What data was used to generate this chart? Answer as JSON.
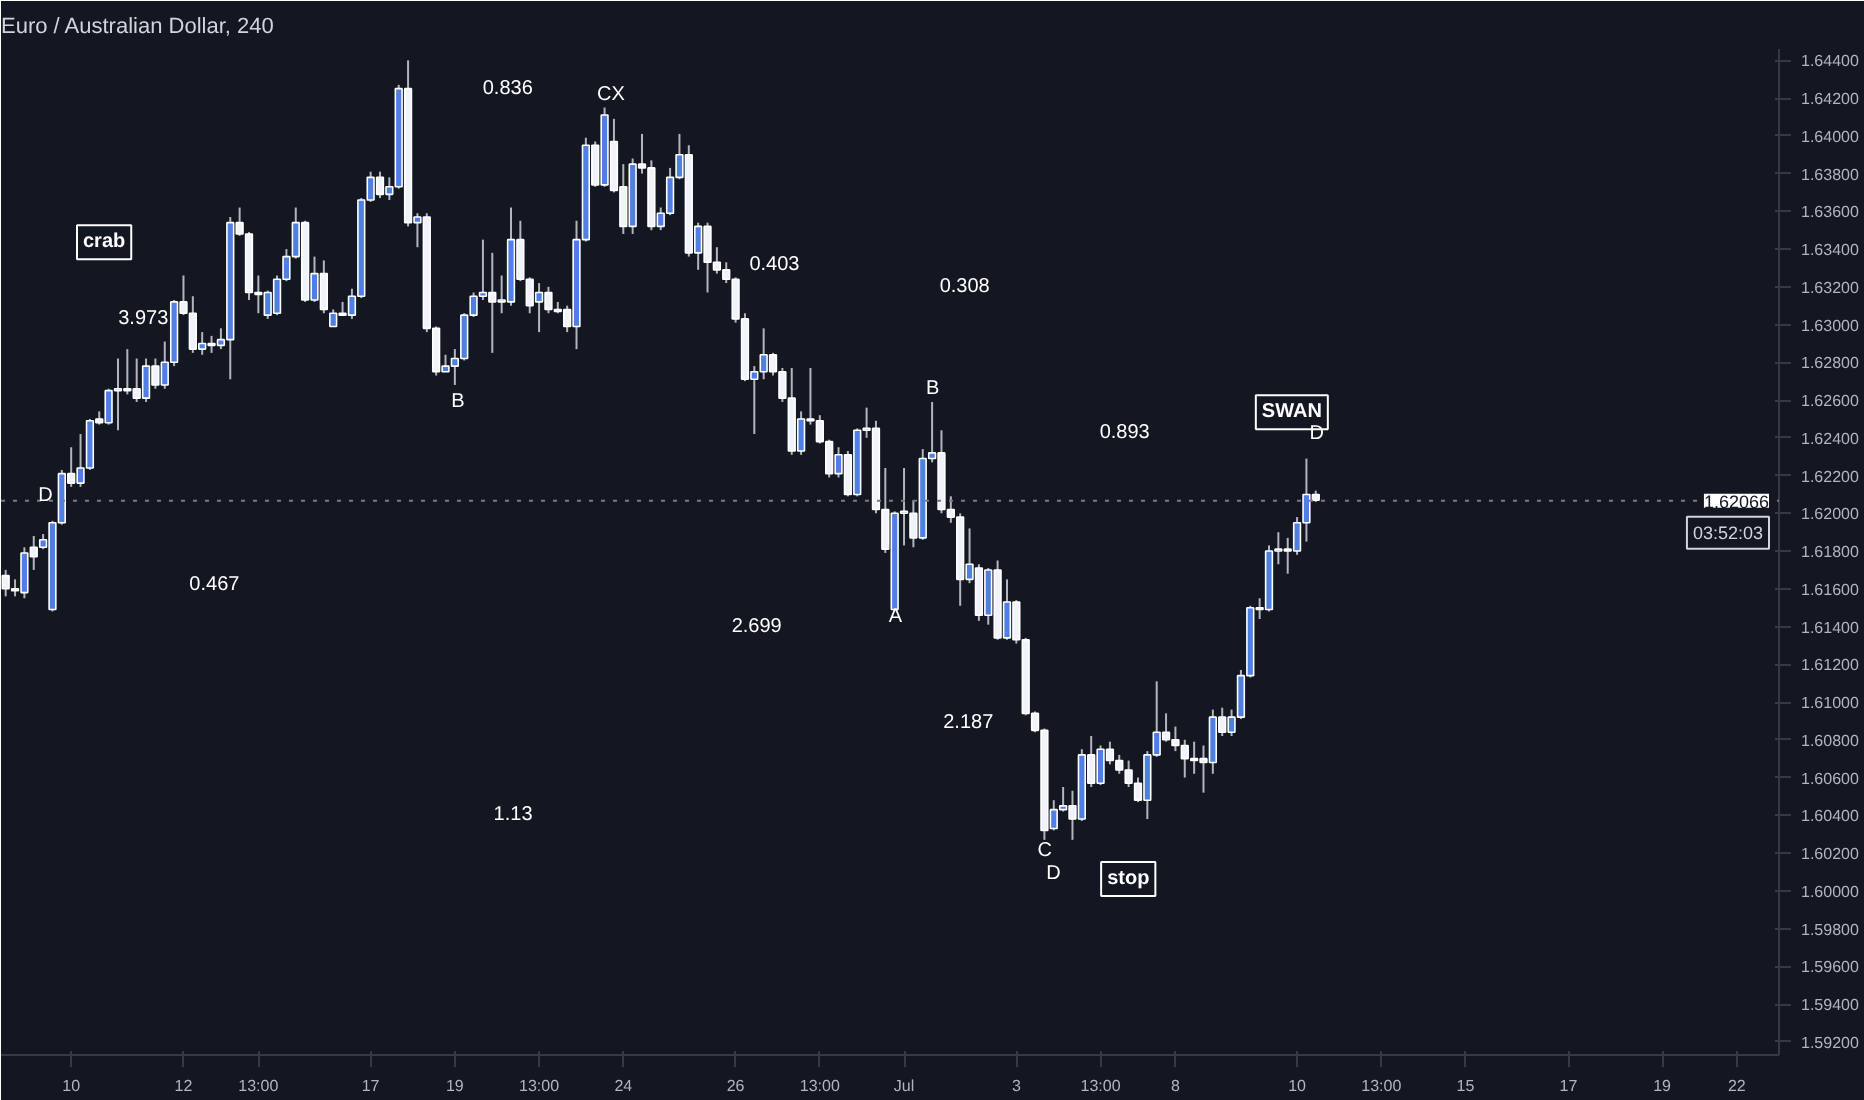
{
  "chart_data": {
    "type": "candlestick",
    "title": "Euro / Australian Dollar, 240",
    "categories": [
      null,
      null,
      null,
      null,
      null,
      null,
      null,
      "10",
      null,
      null,
      null,
      null,
      null,
      null,
      null,
      null,
      null,
      null,
      null,
      "12",
      null,
      null,
      null,
      null,
      null,
      null,
      null,
      "13:00",
      null,
      null,
      null,
      null,
      null,
      null,
      null,
      null,
      null,
      null,
      null,
      "17",
      null,
      null,
      null,
      null,
      null,
      null,
      null,
      null,
      "19",
      null,
      null,
      null,
      null,
      null,
      null,
      null,
      null,
      "13:00",
      null,
      null,
      null,
      null,
      null,
      null,
      null,
      null,
      "24",
      null,
      null,
      null,
      null,
      null,
      null,
      null,
      null,
      null,
      null,
      null,
      "26",
      null,
      null,
      null,
      null,
      null,
      null,
      null,
      null,
      "13:00",
      null,
      null,
      null,
      null,
      null,
      null,
      null,
      null,
      "Jul",
      null,
      null,
      null,
      null,
      null,
      null,
      null,
      null,
      null,
      null,
      null,
      "3",
      null,
      null,
      null,
      null,
      null,
      null,
      null,
      null,
      "13:00",
      null,
      null,
      null,
      null,
      null,
      null,
      null,
      "8",
      null,
      null,
      null,
      null,
      null,
      null,
      null,
      null,
      null,
      null,
      null,
      null,
      "10",
      null,
      null,
      null,
      null,
      null,
      null,
      null,
      null,
      "13:00",
      null,
      null,
      null,
      null,
      null,
      null,
      null,
      null,
      "15",
      null,
      null,
      null,
      null,
      null,
      null,
      null,
      null,
      null,
      null,
      "17",
      null,
      null,
      null,
      null,
      null,
      null,
      null,
      null,
      null,
      "19",
      null,
      null,
      null,
      null,
      null,
      null,
      null,
      "22",
      null,
      null,
      null,
      null
    ],
    "ohlc": [
      [
        1.6167,
        1.617,
        1.6156,
        1.616
      ],
      [
        1.616,
        1.6165,
        1.6156,
        1.6159
      ],
      [
        1.6158,
        1.6182,
        1.6155,
        1.6179
      ],
      [
        1.6182,
        1.6188,
        1.617,
        1.6177
      ],
      [
        1.6182,
        1.6189,
        1.6181,
        1.6186
      ],
      [
        1.6149,
        1.6196,
        1.6148,
        1.6195
      ],
      [
        1.6195,
        1.6223,
        1.6194,
        1.6221
      ],
      [
        1.6221,
        1.6235,
        1.6214,
        1.6216
      ],
      [
        1.6216,
        1.6242,
        1.6214,
        1.6224
      ],
      [
        1.6224,
        1.625,
        1.6223,
        1.6249
      ],
      [
        1.625,
        1.6254,
        1.6247,
        1.6248
      ],
      [
        1.6248,
        1.6266,
        1.6247,
        1.6265
      ],
      [
        1.6265,
        1.6282,
        1.6244,
        1.6266
      ],
      [
        1.6266,
        1.6287,
        1.6263,
        1.6265
      ],
      [
        1.6266,
        1.6282,
        1.6259,
        1.6261
      ],
      [
        1.6261,
        1.6282,
        1.6259,
        1.6278
      ],
      [
        1.6278,
        1.6282,
        1.6266,
        1.6268
      ],
      [
        1.6268,
        1.6291,
        1.6266,
        1.628
      ],
      [
        1.628,
        1.6313,
        1.6278,
        1.6312
      ],
      [
        1.6312,
        1.6326,
        1.6305,
        1.6306
      ],
      [
        1.6306,
        1.6315,
        1.6285,
        1.6287
      ],
      [
        1.6287,
        1.6296,
        1.6284,
        1.629
      ],
      [
        1.629,
        1.6294,
        1.6285,
        1.6289
      ],
      [
        1.6289,
        1.6298,
        1.6287,
        1.6292
      ],
      [
        1.6292,
        1.6357,
        1.6271,
        1.6354
      ],
      [
        1.6354,
        1.6362,
        1.6347,
        1.6348
      ],
      [
        1.6348,
        1.6349,
        1.6313,
        1.6317
      ],
      [
        1.6317,
        1.6326,
        1.6306,
        1.6316
      ],
      [
        1.6305,
        1.6318,
        1.6303,
        1.6317
      ],
      [
        1.6306,
        1.6326,
        1.6305,
        1.6324
      ],
      [
        1.6324,
        1.634,
        1.6323,
        1.6336
      ],
      [
        1.6336,
        1.6362,
        1.6335,
        1.6354
      ],
      [
        1.6354,
        1.6355,
        1.6312,
        1.6313
      ],
      [
        1.6313,
        1.6336,
        1.6312,
        1.6327
      ],
      [
        1.6327,
        1.6334,
        1.6306,
        1.6308
      ],
      [
        1.6299,
        1.6308,
        1.6299,
        1.6306
      ],
      [
        1.6306,
        1.6312,
        1.6305,
        1.6305
      ],
      [
        1.6305,
        1.6319,
        1.6303,
        1.6315
      ],
      [
        1.6315,
        1.6367,
        1.6314,
        1.6366
      ],
      [
        1.6366,
        1.6381,
        1.6365,
        1.6378
      ],
      [
        1.6378,
        1.6381,
        1.6367,
        1.6369
      ],
      [
        1.6369,
        1.6378,
        1.6366,
        1.6373
      ],
      [
        1.6373,
        1.6427,
        1.6372,
        1.6425
      ],
      [
        1.6425,
        1.644,
        1.6352,
        1.6354
      ],
      [
        1.6354,
        1.6359,
        1.6341,
        1.6357
      ],
      [
        1.6357,
        1.6359,
        1.6296,
        1.6298
      ],
      [
        1.6298,
        1.6299,
        1.6273,
        1.6275
      ],
      [
        1.6275,
        1.6284,
        1.6275,
        1.6278
      ],
      [
        1.6278,
        1.6287,
        1.6268,
        1.6282
      ],
      [
        1.6282,
        1.6306,
        1.6281,
        1.6305
      ],
      [
        1.6305,
        1.6317,
        1.6304,
        1.6315
      ],
      [
        1.6315,
        1.6345,
        1.6313,
        1.6317
      ],
      [
        1.6317,
        1.6338,
        1.6285,
        1.6312
      ],
      [
        1.6312,
        1.6326,
        1.6306,
        1.6313
      ],
      [
        1.6312,
        1.6362,
        1.631,
        1.6345
      ],
      [
        1.6345,
        1.6355,
        1.6323,
        1.6324
      ],
      [
        1.6324,
        1.6325,
        1.6306,
        1.631
      ],
      [
        1.6312,
        1.6322,
        1.6296,
        1.6317
      ],
      [
        1.6317,
        1.632,
        1.6306,
        1.6308
      ],
      [
        1.6308,
        1.6312,
        1.6306,
        1.6307
      ],
      [
        1.6308,
        1.631,
        1.6296,
        1.6299
      ],
      [
        1.6299,
        1.6355,
        1.6287,
        1.6345
      ],
      [
        1.6345,
        1.6399,
        1.6344,
        1.6395
      ],
      [
        1.6395,
        1.6397,
        1.6373,
        1.6374
      ],
      [
        1.6374,
        1.6415,
        1.6373,
        1.6411
      ],
      [
        1.6397,
        1.6409,
        1.637,
        1.6371
      ],
      [
        1.6373,
        1.6385,
        1.6348,
        1.6352
      ],
      [
        1.6352,
        1.6388,
        1.6348,
        1.6385
      ],
      [
        1.6385,
        1.6401,
        1.638,
        1.6383
      ],
      [
        1.6383,
        1.6387,
        1.635,
        1.6352
      ],
      [
        1.6352,
        1.6362,
        1.635,
        1.6359
      ],
      [
        1.6359,
        1.6383,
        1.6358,
        1.6378
      ],
      [
        1.6378,
        1.6401,
        1.6377,
        1.639
      ],
      [
        1.639,
        1.6395,
        1.6336,
        1.6338
      ],
      [
        1.6338,
        1.6354,
        1.6329,
        1.6352
      ],
      [
        1.6352,
        1.6354,
        1.6317,
        1.6333
      ],
      [
        1.6333,
        1.6341,
        1.6327,
        1.6329
      ],
      [
        1.6329,
        1.6333,
        1.6322,
        1.6324
      ],
      [
        1.6324,
        1.6325,
        1.6301,
        1.6303
      ],
      [
        1.6303,
        1.6306,
        1.627,
        1.6271
      ],
      [
        1.6271,
        1.6278,
        1.6242,
        1.6275
      ],
      [
        1.6275,
        1.6298,
        1.6271,
        1.6284
      ],
      [
        1.6284,
        1.6285,
        1.6273,
        1.6275
      ],
      [
        1.6275,
        1.6277,
        1.6259,
        1.6261
      ],
      [
        1.6261,
        1.6277,
        1.6231,
        1.6233
      ],
      [
        1.6233,
        1.6254,
        1.6231,
        1.625
      ],
      [
        1.625,
        1.6277,
        1.6247,
        1.6249
      ],
      [
        1.6249,
        1.6252,
        1.6237,
        1.6238
      ],
      [
        1.6238,
        1.6239,
        1.6219,
        1.6221
      ],
      [
        1.6221,
        1.6235,
        1.6219,
        1.6231
      ],
      [
        1.6231,
        1.6233,
        1.6209,
        1.621
      ],
      [
        1.621,
        1.6245,
        1.6209,
        1.6244
      ],
      [
        1.6244,
        1.6256,
        1.624,
        1.6245
      ],
      [
        1.6245,
        1.6249,
        1.62,
        1.6202
      ],
      [
        1.6202,
        1.6224,
        1.6179,
        1.6181
      ],
      [
        1.6149,
        1.6201,
        1.6148,
        1.62
      ],
      [
        1.62,
        1.6224,
        1.6183,
        1.6201
      ],
      [
        1.62,
        1.6207,
        1.6182,
        1.6187
      ],
      [
        1.6187,
        1.6234,
        1.6186,
        1.6229
      ],
      [
        1.6229,
        1.6259,
        1.6227,
        1.6232
      ],
      [
        1.6232,
        1.6244,
        1.62,
        1.6202
      ],
      [
        1.6202,
        1.6209,
        1.6195,
        1.6198
      ],
      [
        1.6198,
        1.62,
        1.6151,
        1.6165
      ],
      [
        1.6165,
        1.6192,
        1.6163,
        1.6173
      ],
      [
        1.6171,
        1.6173,
        1.6143,
        1.6146
      ],
      [
        1.6146,
        1.6171,
        1.6141,
        1.617
      ],
      [
        1.617,
        1.6175,
        1.6133,
        1.6134
      ],
      [
        1.6134,
        1.6165,
        1.6133,
        1.6153
      ],
      [
        1.6153,
        1.6154,
        1.6131,
        1.6133
      ],
      [
        1.6133,
        1.6134,
        1.6093,
        1.6094
      ],
      [
        1.6094,
        1.6095,
        1.6084,
        1.6085
      ],
      [
        1.6085,
        1.6086,
        1.6027,
        1.6032
      ],
      [
        1.6033,
        1.6048,
        1.6032,
        1.6043
      ],
      [
        1.6043,
        1.6055,
        1.6042,
        1.6045
      ],
      [
        1.6045,
        1.6053,
        1.6027,
        1.6038
      ],
      [
        1.6038,
        1.6075,
        1.6037,
        1.6072
      ],
      [
        1.6072,
        1.6082,
        1.6055,
        1.6057
      ],
      [
        1.6057,
        1.6077,
        1.6056,
        1.6075
      ],
      [
        1.6075,
        1.6079,
        1.6067,
        1.6069
      ],
      [
        1.6069,
        1.6072,
        1.6062,
        1.6064
      ],
      [
        1.6064,
        1.6069,
        1.6055,
        1.6057
      ],
      [
        1.6057,
        1.606,
        1.6047,
        1.6048
      ],
      [
        1.6048,
        1.6074,
        1.6038,
        1.6072
      ],
      [
        1.6072,
        1.6111,
        1.6071,
        1.6084
      ],
      [
        1.6084,
        1.6094,
        1.6079,
        1.608
      ],
      [
        1.608,
        1.6087,
        1.6074,
        1.6077
      ],
      [
        1.6077,
        1.608,
        1.606,
        1.607
      ],
      [
        1.607,
        1.6079,
        1.6062,
        1.6069
      ],
      [
        1.607,
        1.6077,
        1.6052,
        1.6068
      ],
      [
        1.6068,
        1.6096,
        1.6062,
        1.6092
      ],
      [
        1.6092,
        1.6097,
        1.6082,
        1.6084
      ],
      [
        1.6084,
        1.6096,
        1.6082,
        1.6092
      ],
      [
        1.6092,
        1.6117,
        1.6091,
        1.6114
      ],
      [
        1.6114,
        1.6151,
        1.6113,
        1.615
      ],
      [
        1.615,
        1.6155,
        1.6144,
        1.6149
      ],
      [
        1.6149,
        1.6183,
        1.6148,
        1.618
      ],
      [
        1.618,
        1.619,
        1.6173,
        1.6181
      ],
      [
        1.6181,
        1.6187,
        1.6168,
        1.618
      ],
      [
        1.618,
        1.6198,
        1.6178,
        1.6195
      ],
      [
        1.6195,
        1.6229,
        1.6185,
        1.621
      ],
      [
        1.621,
        1.6212,
        1.6206,
        1.6207
      ],
      null,
      null,
      null,
      null,
      null,
      null,
      null,
      null,
      null,
      null,
      null,
      null,
      null,
      null,
      null,
      null,
      null,
      null,
      null,
      null,
      null,
      null,
      null,
      null,
      null,
      null,
      null,
      null,
      null,
      null,
      null,
      null,
      null,
      null,
      null,
      null,
      null,
      null,
      null,
      null,
      null,
      null,
      null,
      null,
      null,
      null,
      null,
      null,
      null
    ],
    "ylim": [
      1.5913,
      1.6446
    ],
    "yticks": [
      {
        "value": 1.592,
        "label": "1.59200"
      },
      {
        "value": 1.594,
        "label": "1.59400"
      },
      {
        "value": 1.596,
        "label": "1.59600"
      },
      {
        "value": 1.598,
        "label": "1.59800"
      },
      {
        "value": 1.6,
        "label": "1.60000"
      },
      {
        "value": 1.602,
        "label": "1.60200"
      },
      {
        "value": 1.604,
        "label": "1.60400"
      },
      {
        "value": 1.606,
        "label": "1.60600"
      },
      {
        "value": 1.608,
        "label": "1.60800"
      },
      {
        "value": 1.61,
        "label": "1.61000"
      },
      {
        "value": 1.612,
        "label": "1.61200"
      },
      {
        "value": 1.614,
        "label": "1.61400"
      },
      {
        "value": 1.616,
        "label": "1.61600"
      },
      {
        "value": 1.618,
        "label": "1.61800"
      },
      {
        "value": 1.62,
        "label": "1.62000"
      },
      {
        "value": 1.622,
        "label": "1.62200"
      },
      {
        "value": 1.624,
        "label": "1.62400"
      },
      {
        "value": 1.626,
        "label": "1.62600"
      },
      {
        "value": 1.628,
        "label": "1.62800"
      },
      {
        "value": 1.63,
        "label": "1.63000"
      },
      {
        "value": 1.632,
        "label": "1.63200"
      },
      {
        "value": 1.634,
        "label": "1.63400"
      },
      {
        "value": 1.636,
        "label": "1.63600"
      },
      {
        "value": 1.638,
        "label": "1.63800"
      },
      {
        "value": 1.64,
        "label": "1.64000"
      },
      {
        "value": 1.642,
        "label": "1.64200"
      },
      {
        "value": 1.644,
        "label": "1.64400"
      }
    ],
    "ref_lines": [
      {
        "axis": "y",
        "value": 1.62066,
        "label": "1.62066",
        "color": "#787b86",
        "line_style": "dotted"
      }
    ],
    "annotations": [
      "03:52:03",
      "crab",
      "3.973",
      "D",
      "0.467",
      "B",
      "0.836",
      "CX",
      "1.13",
      "0.403",
      "0.308",
      "B",
      "2.699",
      "A",
      "2.187",
      "C",
      "D",
      "stop",
      "0.893",
      "SWAN",
      "D"
    ],
    "grid": false
  }
}
